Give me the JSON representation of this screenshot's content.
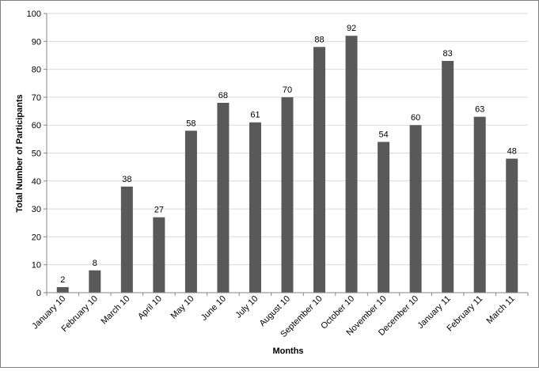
{
  "chart_data": {
    "type": "bar",
    "title": "",
    "xlabel": "Months",
    "ylabel": "Total Number of Participants",
    "categories": [
      "January 10",
      "February 10",
      "March 10",
      "April 10",
      "May 10",
      "June 10",
      "July 10",
      "August 10",
      "September 10",
      "October 10",
      "November 10",
      "December 10",
      "January 11",
      "February 11",
      "March 11"
    ],
    "values": [
      2,
      8,
      38,
      27,
      58,
      68,
      61,
      70,
      88,
      92,
      54,
      60,
      83,
      63,
      48
    ],
    "ylim": [
      0,
      100
    ],
    "yticks": [
      0,
      10,
      20,
      30,
      40,
      50,
      60,
      70,
      80,
      90,
      100
    ],
    "grid": true,
    "data_labels": true,
    "legend": "none",
    "colors": {
      "bar": "#595959",
      "gridline": "#d9d9d9",
      "axis": "#868686",
      "border": "#7f7f7f"
    }
  }
}
